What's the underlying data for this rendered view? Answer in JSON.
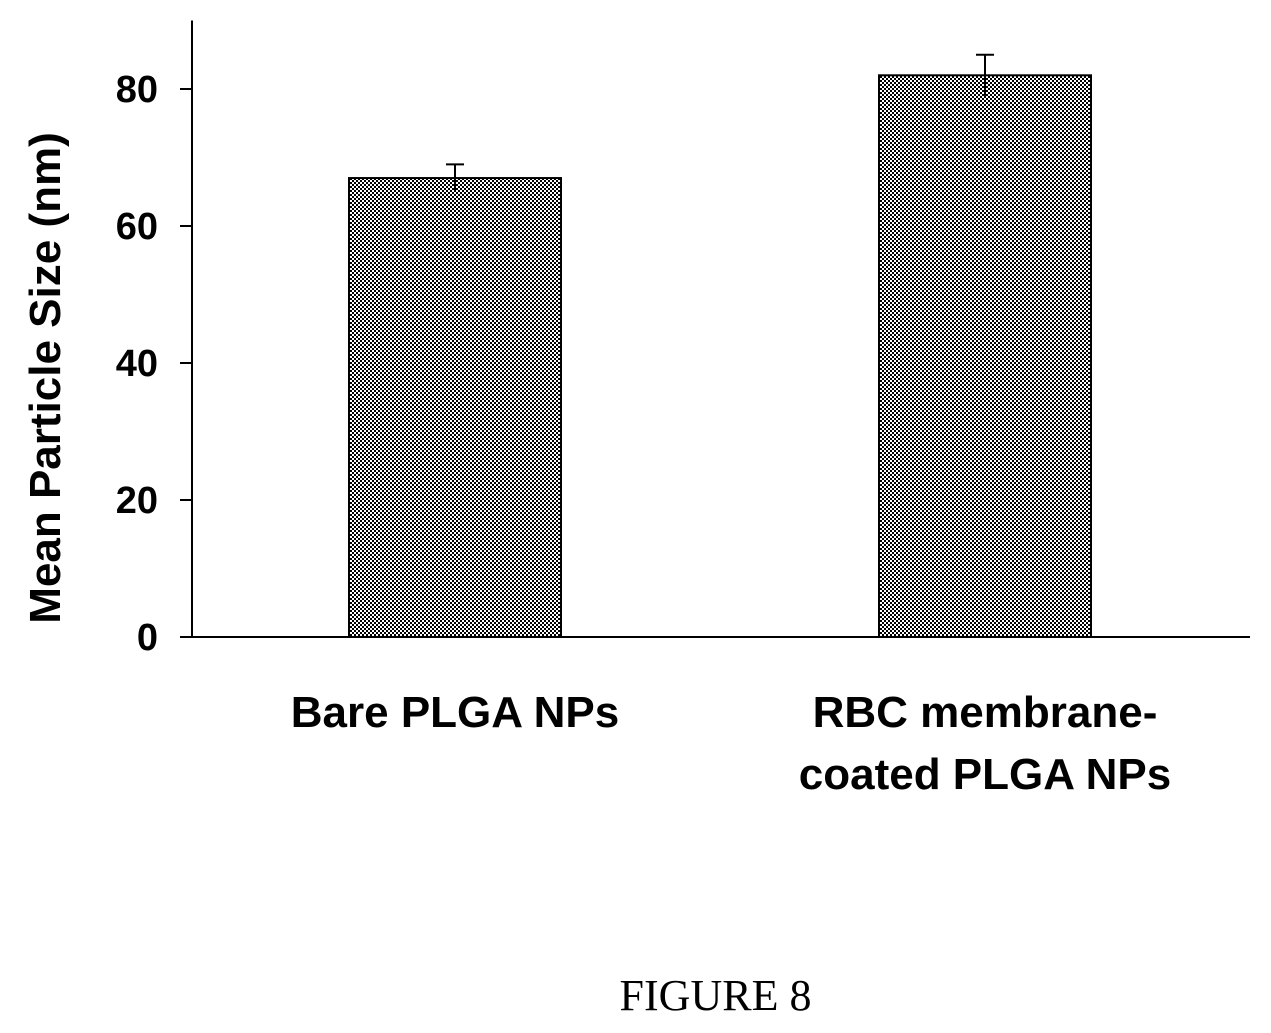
{
  "figure_caption": "FIGURE 8",
  "chart_data": {
    "type": "bar",
    "title": "",
    "xlabel": "",
    "ylabel": "Mean Particle Size (nm)",
    "categories": [
      [
        "Bare PLGA  NPs"
      ],
      [
        "RBC membrane-",
        "coated PLGA  NPs"
      ]
    ],
    "values": [
      67,
      82
    ],
    "errors": [
      2,
      3
    ],
    "ylim": [
      0,
      90
    ],
    "yticks": [
      0,
      20,
      40,
      60,
      80
    ],
    "grid": false,
    "legend": "none",
    "colors": {
      "bar_fill": "#8a8a8a",
      "bar_edge": "#000000",
      "axis": "#000000"
    }
  }
}
